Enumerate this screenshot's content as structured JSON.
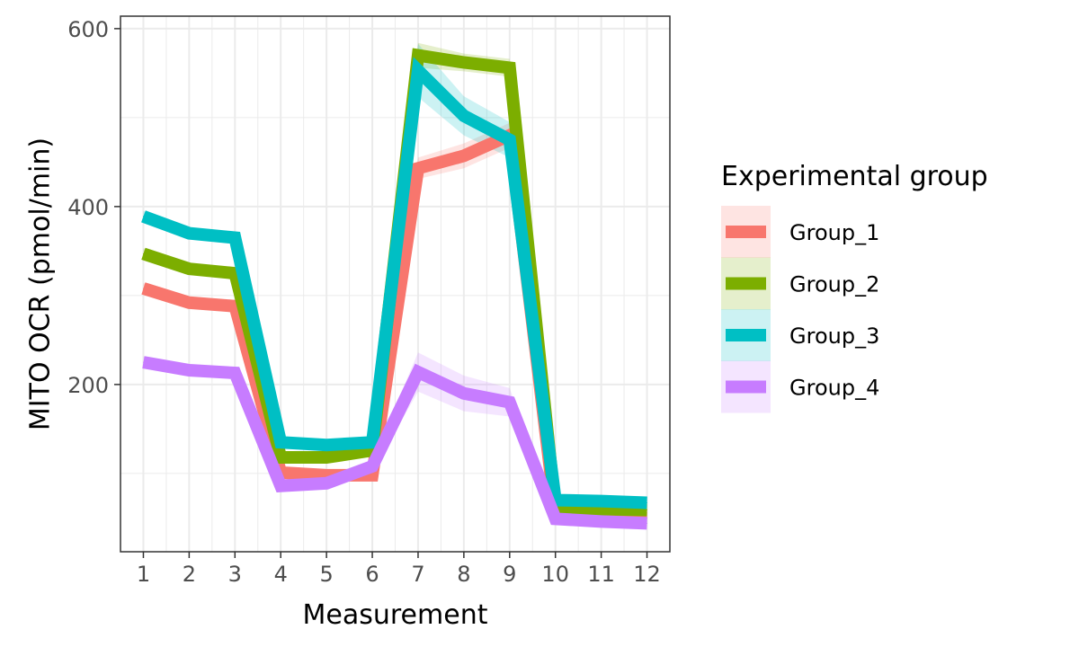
{
  "chart_data": {
    "type": "line",
    "title": "",
    "xlabel": "Measurement",
    "ylabel": "MITO OCR (pmol/min)",
    "x": [
      1,
      2,
      3,
      4,
      5,
      6,
      7,
      8,
      9,
      10,
      11,
      12
    ],
    "xlim": [
      0.5,
      12.5
    ],
    "ylim": [
      12,
      614
    ],
    "yticks": [
      200,
      400,
      600
    ],
    "grid": true,
    "legend": {
      "title": "Experimental group",
      "position": "right"
    },
    "series": [
      {
        "name": "Group_1",
        "color": "#F8766D",
        "values": [
          308,
          292,
          288,
          101,
          98,
          98,
          443,
          457,
          480,
          55,
          52,
          50
        ],
        "ribbon": [
          6,
          6,
          6,
          5,
          5,
          5,
          12,
          14,
          14,
          4,
          4,
          4
        ]
      },
      {
        "name": "Group_2",
        "color": "#7CAE00",
        "values": [
          347,
          330,
          325,
          118,
          118,
          126,
          570,
          562,
          556,
          60,
          60,
          59
        ],
        "ribbon": [
          6,
          6,
          6,
          5,
          5,
          5,
          14,
          10,
          10,
          4,
          4,
          4
        ]
      },
      {
        "name": "Group_3",
        "color": "#00BFC4",
        "values": [
          389,
          370,
          365,
          135,
          132,
          135,
          553,
          502,
          475,
          70,
          69,
          67
        ],
        "ribbon": [
          6,
          6,
          6,
          5,
          5,
          5,
          30,
          22,
          20,
          4,
          4,
          4
        ]
      },
      {
        "name": "Group_4",
        "color": "#C77CFF",
        "values": [
          225,
          216,
          213,
          86,
          89,
          108,
          214,
          190,
          180,
          49,
          46,
          44
        ],
        "ribbon": [
          6,
          6,
          6,
          5,
          5,
          6,
          22,
          20,
          16,
          4,
          4,
          4
        ]
      }
    ]
  }
}
